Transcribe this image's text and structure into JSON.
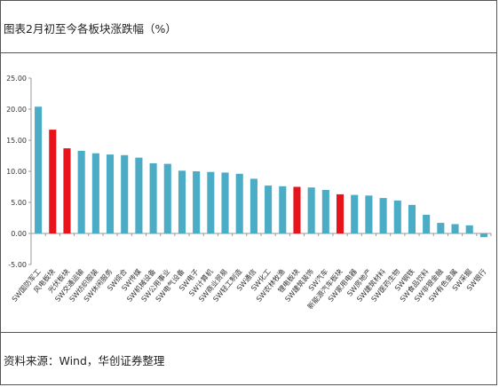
{
  "header": {
    "title": "图表2月初至今各板块涨跌幅（%）"
  },
  "footer": {
    "source": "资料来源：Wind，华创证券整理"
  },
  "colors": {
    "teal": "#4bacc6",
    "red": "#e8141b",
    "axis": "#999999"
  },
  "chart_data": {
    "type": "bar",
    "title": "",
    "xlabel": "",
    "ylabel": "",
    "ylim": [
      -5,
      25
    ],
    "yticks": [
      "25.00",
      "20.00",
      "15.00",
      "10.00",
      "5.00",
      "0.00",
      "-5.00"
    ],
    "grid": false,
    "legend": "none",
    "categories": [
      "SW国防军工",
      "风电板块",
      "光伏板块",
      "SW交通运输",
      "SW纺织服装",
      "SW休闲服务",
      "SW综合",
      "SW传媒",
      "SW机械设备",
      "SW公用事业",
      "SW电气设备",
      "SW电子",
      "SW计算机",
      "SW商业贸易",
      "SW轻工制造",
      "SW通信",
      "SW化工",
      "SW农林牧渔",
      "锂电板块",
      "SW建筑装饰",
      "SW汽车",
      "新能源汽车板块",
      "SW家用电器",
      "SW房地产",
      "SW建筑材料",
      "SW医药生物",
      "SW钢铁",
      "SW食品饮料",
      "SW非银金融",
      "SW有色金属",
      "SW采掘",
      "SW银行"
    ],
    "values": [
      20.4,
      16.7,
      13.7,
      13.3,
      12.9,
      12.7,
      12.6,
      12.2,
      11.3,
      11.2,
      10.1,
      10.0,
      9.9,
      9.8,
      9.6,
      8.8,
      7.7,
      7.6,
      7.5,
      7.4,
      7.0,
      6.3,
      6.2,
      6.1,
      5.7,
      5.3,
      4.6,
      3.0,
      1.7,
      1.5,
      1.3,
      -0.6
    ],
    "highlight": [
      false,
      true,
      true,
      false,
      false,
      false,
      false,
      false,
      false,
      false,
      false,
      false,
      false,
      false,
      false,
      false,
      false,
      false,
      true,
      false,
      false,
      true,
      false,
      false,
      false,
      false,
      false,
      false,
      false,
      false,
      false,
      false
    ]
  }
}
